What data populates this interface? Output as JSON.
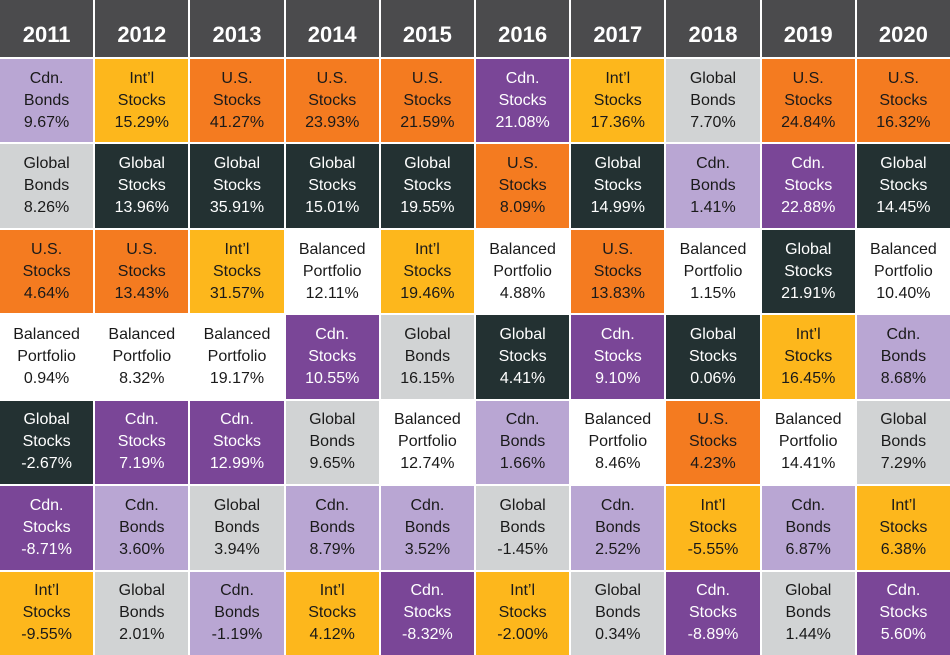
{
  "years": [
    "2011",
    "2012",
    "2013",
    "2014",
    "2015",
    "2016",
    "2017",
    "2018",
    "2019",
    "2020"
  ],
  "styles": {
    "Cdn. Bonds": {
      "bg": "#b9a6d3",
      "fg": "#1a1a1a"
    },
    "Cdn. Stocks": {
      "bg": "#7a4697",
      "fg": "#ffffff"
    },
    "Int'l Stocks": {
      "bg": "#fdb71c",
      "fg": "#1a1a1a"
    },
    "U.S. Stocks": {
      "bg": "#f47b20",
      "fg": "#1a1a1a"
    },
    "Global Bonds": {
      "bg": "#d1d3d4",
      "fg": "#1a1a1a"
    },
    "Global Stocks": {
      "bg": "#233132",
      "fg": "#ffffff"
    },
    "Balanced Portfolio": {
      "bg": "#ffffff",
      "fg": "#1a1a1a"
    }
  },
  "chart_data": {
    "type": "table",
    "columns": [
      {
        "year": "2011",
        "cells": [
          {
            "line1": "Cdn.",
            "line2": "Bonds",
            "value": "9.67%",
            "key": "Cdn. Bonds"
          },
          {
            "line1": "Global",
            "line2": "Bonds",
            "value": "8.26%",
            "key": "Global Bonds"
          },
          {
            "line1": "U.S.",
            "line2": "Stocks",
            "value": "4.64%",
            "key": "U.S. Stocks"
          },
          {
            "line1": "Balanced",
            "line2": "Portfolio",
            "value": "0.94%",
            "key": "Balanced Portfolio"
          },
          {
            "line1": "Global",
            "line2": "Stocks",
            "value": "-2.67%",
            "key": "Global Stocks"
          },
          {
            "line1": "Cdn.",
            "line2": "Stocks",
            "value": "-8.71%",
            "key": "Cdn. Stocks"
          },
          {
            "line1": "Int’l",
            "line2": "Stocks",
            "value": "-9.55%",
            "key": "Int'l Stocks"
          }
        ]
      },
      {
        "year": "2012",
        "cells": [
          {
            "line1": "Int’l",
            "line2": "Stocks",
            "value": "15.29%",
            "key": "Int'l Stocks"
          },
          {
            "line1": "Global",
            "line2": "Stocks",
            "value": "13.96%",
            "key": "Global Stocks"
          },
          {
            "line1": "U.S.",
            "line2": "Stocks",
            "value": "13.43%",
            "key": "U.S. Stocks"
          },
          {
            "line1": "Balanced",
            "line2": "Portfolio",
            "value": "8.32%",
            "key": "Balanced Portfolio"
          },
          {
            "line1": "Cdn.",
            "line2": "Stocks",
            "value": "7.19%",
            "key": "Cdn. Stocks"
          },
          {
            "line1": "Cdn.",
            "line2": "Bonds",
            "value": "3.60%",
            "key": "Cdn. Bonds"
          },
          {
            "line1": "Global",
            "line2": "Bonds",
            "value": "2.01%",
            "key": "Global Bonds"
          }
        ]
      },
      {
        "year": "2013",
        "cells": [
          {
            "line1": "U.S.",
            "line2": "Stocks",
            "value": "41.27%",
            "key": "U.S. Stocks"
          },
          {
            "line1": "Global",
            "line2": "Stocks",
            "value": "35.91%",
            "key": "Global Stocks"
          },
          {
            "line1": "Int’l",
            "line2": "Stocks",
            "value": "31.57%",
            "key": "Int'l Stocks"
          },
          {
            "line1": "Balanced",
            "line2": "Portfolio",
            "value": "19.17%",
            "key": "Balanced Portfolio"
          },
          {
            "line1": "Cdn.",
            "line2": "Stocks",
            "value": "12.99%",
            "key": "Cdn. Stocks"
          },
          {
            "line1": "Global",
            "line2": "Bonds",
            "value": "3.94%",
            "key": "Global Bonds"
          },
          {
            "line1": "Cdn.",
            "line2": "Bonds",
            "value": "-1.19%",
            "key": "Cdn. Bonds"
          }
        ]
      },
      {
        "year": "2014",
        "cells": [
          {
            "line1": "U.S.",
            "line2": "Stocks",
            "value": "23.93%",
            "key": "U.S. Stocks"
          },
          {
            "line1": "Global",
            "line2": "Stocks",
            "value": "15.01%",
            "key": "Global Stocks"
          },
          {
            "line1": "Balanced",
            "line2": "Portfolio",
            "value": "12.11%",
            "key": "Balanced Portfolio"
          },
          {
            "line1": "Cdn.",
            "line2": "Stocks",
            "value": "10.55%",
            "key": "Cdn. Stocks"
          },
          {
            "line1": "Global",
            "line2": "Bonds",
            "value": "9.65%",
            "key": "Global Bonds"
          },
          {
            "line1": "Cdn.",
            "line2": "Bonds",
            "value": "8.79%",
            "key": "Cdn. Bonds"
          },
          {
            "line1": "Int’l",
            "line2": "Stocks",
            "value": "4.12%",
            "key": "Int'l Stocks"
          }
        ]
      },
      {
        "year": "2015",
        "cells": [
          {
            "line1": "U.S.",
            "line2": "Stocks",
            "value": "21.59%",
            "key": "U.S. Stocks"
          },
          {
            "line1": "Global",
            "line2": "Stocks",
            "value": "19.55%",
            "key": "Global Stocks"
          },
          {
            "line1": "Int’l",
            "line2": "Stocks",
            "value": "19.46%",
            "key": "Int'l Stocks"
          },
          {
            "line1": "Global",
            "line2": "Bonds",
            "value": "16.15%",
            "key": "Global Bonds"
          },
          {
            "line1": "Balanced",
            "line2": "Portfolio",
            "value": "12.74%",
            "key": "Balanced Portfolio"
          },
          {
            "line1": "Cdn.",
            "line2": "Bonds",
            "value": "3.52%",
            "key": "Cdn. Bonds"
          },
          {
            "line1": "Cdn.",
            "line2": "Stocks",
            "value": "-8.32%",
            "key": "Cdn. Stocks"
          }
        ]
      },
      {
        "year": "2016",
        "cells": [
          {
            "line1": "Cdn.",
            "line2": "Stocks",
            "value": "21.08%",
            "key": "Cdn. Stocks"
          },
          {
            "line1": "U.S.",
            "line2": "Stocks",
            "value": "8.09%",
            "key": "U.S. Stocks"
          },
          {
            "line1": "Balanced",
            "line2": "Portfolio",
            "value": "4.88%",
            "key": "Balanced Portfolio"
          },
          {
            "line1": "Global",
            "line2": "Stocks",
            "value": "4.41%",
            "key": "Global Stocks"
          },
          {
            "line1": "Cdn.",
            "line2": "Bonds",
            "value": "1.66%",
            "key": "Cdn. Bonds"
          },
          {
            "line1": "Global",
            "line2": "Bonds",
            "value": "-1.45%",
            "key": "Global Bonds"
          },
          {
            "line1": "Int’l",
            "line2": "Stocks",
            "value": "-2.00%",
            "key": "Int'l Stocks"
          }
        ]
      },
      {
        "year": "2017",
        "cells": [
          {
            "line1": "Int’l",
            "line2": "Stocks",
            "value": "17.36%",
            "key": "Int'l Stocks"
          },
          {
            "line1": "Global",
            "line2": "Stocks",
            "value": "14.99%",
            "key": "Global Stocks"
          },
          {
            "line1": "U.S.",
            "line2": "Stocks",
            "value": "13.83%",
            "key": "U.S. Stocks"
          },
          {
            "line1": "Cdn.",
            "line2": "Stocks",
            "value": "9.10%",
            "key": "Cdn. Stocks"
          },
          {
            "line1": "Balanced",
            "line2": "Portfolio",
            "value": "8.46%",
            "key": "Balanced Portfolio"
          },
          {
            "line1": "Cdn.",
            "line2": "Bonds",
            "value": "2.52%",
            "key": "Cdn. Bonds"
          },
          {
            "line1": "Global",
            "line2": "Bonds",
            "value": "0.34%",
            "key": "Global Bonds"
          }
        ]
      },
      {
        "year": "2018",
        "cells": [
          {
            "line1": "Global",
            "line2": "Bonds",
            "value": "7.70%",
            "key": "Global Bonds"
          },
          {
            "line1": "Cdn.",
            "line2": "Bonds",
            "value": "1.41%",
            "key": "Cdn. Bonds"
          },
          {
            "line1": "Balanced",
            "line2": "Portfolio",
            "value": "1.15%",
            "key": "Balanced Portfolio"
          },
          {
            "line1": "Global",
            "line2": "Stocks",
            "value": "0.06%",
            "key": "Global Stocks"
          },
          {
            "line1": "U.S.",
            "line2": "Stocks",
            "value": "4.23%",
            "key": "U.S. Stocks"
          },
          {
            "line1": "Int’l",
            "line2": "Stocks",
            "value": "-5.55%",
            "key": "Int'l Stocks"
          },
          {
            "line1": "Cdn.",
            "line2": "Stocks",
            "value": "-8.89%",
            "key": "Cdn. Stocks"
          }
        ]
      },
      {
        "year": "2019",
        "cells": [
          {
            "line1": "U.S.",
            "line2": "Stocks",
            "value": "24.84%",
            "key": "U.S. Stocks"
          },
          {
            "line1": "Cdn.",
            "line2": "Stocks",
            "value": "22.88%",
            "key": "Cdn. Stocks"
          },
          {
            "line1": "Global",
            "line2": "Stocks",
            "value": "21.91%",
            "key": "Global Stocks"
          },
          {
            "line1": "Int’l",
            "line2": "Stocks",
            "value": "16.45%",
            "key": "Int'l Stocks"
          },
          {
            "line1": "Balanced",
            "line2": "Portfolio",
            "value": "14.41%",
            "key": "Balanced Portfolio"
          },
          {
            "line1": "Cdn.",
            "line2": "Bonds",
            "value": "6.87%",
            "key": "Cdn. Bonds"
          },
          {
            "line1": "Global",
            "line2": "Bonds",
            "value": "1.44%",
            "key": "Global Bonds"
          }
        ]
      },
      {
        "year": "2020",
        "cells": [
          {
            "line1": "U.S.",
            "line2": "Stocks",
            "value": "16.32%",
            "key": "U.S. Stocks"
          },
          {
            "line1": "Global",
            "line2": "Stocks",
            "value": "14.45%",
            "key": "Global Stocks"
          },
          {
            "line1": "Balanced",
            "line2": "Portfolio",
            "value": "10.40%",
            "key": "Balanced Portfolio"
          },
          {
            "line1": "Cdn.",
            "line2": "Bonds",
            "value": "8.68%",
            "key": "Cdn. Bonds"
          },
          {
            "line1": "Global",
            "line2": "Bonds",
            "value": "7.29%",
            "key": "Global Bonds"
          },
          {
            "line1": "Int’l",
            "line2": "Stocks",
            "value": "6.38%",
            "key": "Int'l Stocks"
          },
          {
            "line1": "Cdn.",
            "line2": "Stocks",
            "value": "5.60%",
            "key": "Cdn. Stocks"
          }
        ]
      }
    ]
  }
}
